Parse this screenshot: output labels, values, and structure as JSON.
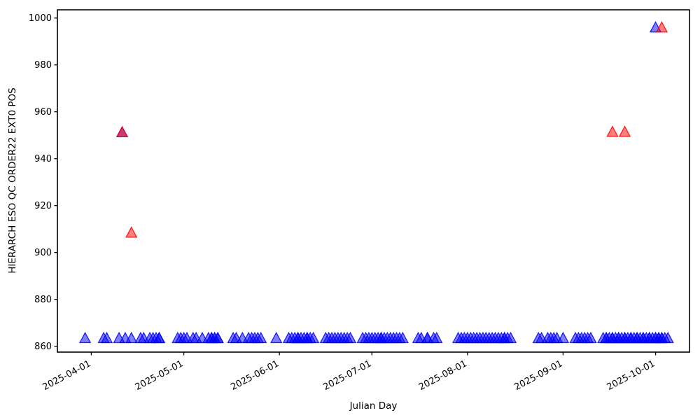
{
  "chart_data": {
    "type": "scatter",
    "title": "",
    "xlabel": "Julian Day",
    "ylabel": "HIERARCH ESO QC ORDER22 EXT0 POS",
    "marker": "triangle-up",
    "marker_alpha": 0.5,
    "grid": false,
    "legend": "none",
    "x_axis": {
      "lim": [
        "2025-03-21",
        "2025-10-12"
      ],
      "ticks": [
        "2025-04-01",
        "2025-05-01",
        "2025-06-01",
        "2025-07-01",
        "2025-08-01",
        "2025-09-01",
        "2025-10-01"
      ],
      "tick_rotation_deg": -28
    },
    "y_axis": {
      "lim": [
        857.5,
        1003.5
      ],
      "ticks": [
        860,
        880,
        900,
        920,
        940,
        960,
        980,
        1000
      ]
    },
    "colors": {
      "series_blue": "#0000ff",
      "series_red": "#ff0000",
      "axis": "#000000",
      "background": "#ffffff"
    },
    "series": [
      {
        "name": "blue",
        "color": "#0000ff",
        "points": [
          [
            "2025-03-30",
            863.5
          ],
          [
            "2025-04-05",
            863.5
          ],
          [
            "2025-04-06",
            863.5
          ],
          [
            "2025-04-10",
            863.5
          ],
          [
            "2025-04-11",
            951.3
          ],
          [
            "2025-04-12",
            863.5
          ],
          [
            "2025-04-14",
            863.5
          ],
          [
            "2025-04-17",
            863.5
          ],
          [
            "2025-04-18",
            863.5
          ],
          [
            "2025-04-20",
            863.5
          ],
          [
            "2025-04-21",
            863.5
          ],
          [
            "2025-04-22",
            863.5
          ],
          [
            "2025-04-23",
            863.5
          ],
          [
            "2025-04-23",
            863.5
          ],
          [
            "2025-04-29",
            863.5
          ],
          [
            "2025-04-30",
            863.5
          ],
          [
            "2025-05-01",
            863.5
          ],
          [
            "2025-05-02",
            863.5
          ],
          [
            "2025-05-04",
            863.5
          ],
          [
            "2025-05-05",
            863.5
          ],
          [
            "2025-05-07",
            863.5
          ],
          [
            "2025-05-09",
            863.5
          ],
          [
            "2025-05-10",
            863.5
          ],
          [
            "2025-05-10",
            863.5
          ],
          [
            "2025-05-11",
            863.5
          ],
          [
            "2025-05-11",
            863.5
          ],
          [
            "2025-05-12",
            863.5
          ],
          [
            "2025-05-12",
            863.5
          ],
          [
            "2025-05-17",
            863.5
          ],
          [
            "2025-05-18",
            863.5
          ],
          [
            "2025-05-20",
            863.5
          ],
          [
            "2025-05-22",
            863.5
          ],
          [
            "2025-05-23",
            863.5
          ],
          [
            "2025-05-24",
            863.5
          ],
          [
            "2025-05-25",
            863.5
          ],
          [
            "2025-05-26",
            863.5
          ],
          [
            "2025-05-31",
            863.5
          ],
          [
            "2025-06-04",
            863.5
          ],
          [
            "2025-06-05",
            863.5
          ],
          [
            "2025-06-06",
            863.5
          ],
          [
            "2025-06-07",
            863.5
          ],
          [
            "2025-06-07",
            863.5
          ],
          [
            "2025-06-08",
            863.5
          ],
          [
            "2025-06-09",
            863.5
          ],
          [
            "2025-06-10",
            863.5
          ],
          [
            "2025-06-10",
            863.5
          ],
          [
            "2025-06-11",
            863.5
          ],
          [
            "2025-06-12",
            863.5
          ],
          [
            "2025-06-16",
            863.5
          ],
          [
            "2025-06-17",
            863.5
          ],
          [
            "2025-06-18",
            863.5
          ],
          [
            "2025-06-19",
            863.5
          ],
          [
            "2025-06-20",
            863.5
          ],
          [
            "2025-06-21",
            863.5
          ],
          [
            "2025-06-22",
            863.5
          ],
          [
            "2025-06-23",
            863.5
          ],
          [
            "2025-06-24",
            863.5
          ],
          [
            "2025-06-28",
            863.5
          ],
          [
            "2025-06-29",
            863.5
          ],
          [
            "2025-06-30",
            863.5
          ],
          [
            "2025-07-01",
            863.5
          ],
          [
            "2025-07-02",
            863.5
          ],
          [
            "2025-07-03",
            863.5
          ],
          [
            "2025-07-04",
            863.5
          ],
          [
            "2025-07-04",
            863.5
          ],
          [
            "2025-07-05",
            863.5
          ],
          [
            "2025-07-06",
            863.5
          ],
          [
            "2025-07-07",
            863.5
          ],
          [
            "2025-07-08",
            863.5
          ],
          [
            "2025-07-09",
            863.5
          ],
          [
            "2025-07-10",
            863.5
          ],
          [
            "2025-07-11",
            863.5
          ],
          [
            "2025-07-16",
            863.5
          ],
          [
            "2025-07-17",
            863.5
          ],
          [
            "2025-07-19",
            863.5
          ],
          [
            "2025-07-19",
            863.5
          ],
          [
            "2025-07-21",
            863.5
          ],
          [
            "2025-07-22",
            863.5
          ],
          [
            "2025-07-29",
            863.5
          ],
          [
            "2025-07-30",
            863.5
          ],
          [
            "2025-07-31",
            863.5
          ],
          [
            "2025-08-01",
            863.5
          ],
          [
            "2025-08-02",
            863.5
          ],
          [
            "2025-08-03",
            863.5
          ],
          [
            "2025-08-04",
            863.5
          ],
          [
            "2025-08-05",
            863.5
          ],
          [
            "2025-08-06",
            863.5
          ],
          [
            "2025-08-07",
            863.5
          ],
          [
            "2025-08-08",
            863.5
          ],
          [
            "2025-08-09",
            863.5
          ],
          [
            "2025-08-10",
            863.5
          ],
          [
            "2025-08-11",
            863.5
          ],
          [
            "2025-08-12",
            863.5
          ],
          [
            "2025-08-13",
            863.5
          ],
          [
            "2025-08-13",
            863.5
          ],
          [
            "2025-08-14",
            863.5
          ],
          [
            "2025-08-15",
            863.5
          ],
          [
            "2025-08-24",
            863.5
          ],
          [
            "2025-08-25",
            863.5
          ],
          [
            "2025-08-27",
            863.5
          ],
          [
            "2025-08-28",
            863.5
          ],
          [
            "2025-08-29",
            863.5
          ],
          [
            "2025-08-30",
            863.5
          ],
          [
            "2025-09-01",
            863.5
          ],
          [
            "2025-09-05",
            863.5
          ],
          [
            "2025-09-06",
            863.5
          ],
          [
            "2025-09-07",
            863.5
          ],
          [
            "2025-09-08",
            863.5
          ],
          [
            "2025-09-09",
            863.5
          ],
          [
            "2025-09-10",
            863.5
          ],
          [
            "2025-09-14",
            863.5
          ],
          [
            "2025-09-15",
            863.5
          ],
          [
            "2025-09-15",
            863.5
          ],
          [
            "2025-09-16",
            863.5
          ],
          [
            "2025-09-17",
            863.5
          ],
          [
            "2025-09-17",
            863.5
          ],
          [
            "2025-09-18",
            863.5
          ],
          [
            "2025-09-19",
            863.5
          ],
          [
            "2025-09-19",
            863.5
          ],
          [
            "2025-09-20",
            863.5
          ],
          [
            "2025-09-21",
            863.5
          ],
          [
            "2025-09-21",
            863.5
          ],
          [
            "2025-09-22",
            863.5
          ],
          [
            "2025-09-23",
            863.5
          ],
          [
            "2025-09-23",
            863.5
          ],
          [
            "2025-09-24",
            863.5
          ],
          [
            "2025-09-25",
            863.5
          ],
          [
            "2025-09-25",
            863.5
          ],
          [
            "2025-09-26",
            863.5
          ],
          [
            "2025-09-27",
            863.5
          ],
          [
            "2025-09-27",
            863.5
          ],
          [
            "2025-09-28",
            863.5
          ],
          [
            "2025-09-29",
            863.5
          ],
          [
            "2025-09-29",
            863.5
          ],
          [
            "2025-09-30",
            863.5
          ],
          [
            "2025-10-01",
            863.5
          ],
          [
            "2025-10-01",
            863.5
          ],
          [
            "2025-10-02",
            863.5
          ],
          [
            "2025-10-02",
            863.5
          ],
          [
            "2025-10-03",
            863.5
          ],
          [
            "2025-10-03",
            863.5
          ],
          [
            "2025-10-04",
            863.5
          ],
          [
            "2025-10-05",
            863.5
          ],
          [
            "2025-10-01",
            996.0
          ]
        ]
      },
      {
        "name": "red",
        "color": "#ff0000",
        "points": [
          [
            "2025-04-11",
            951.3
          ],
          [
            "2025-04-14",
            908.5
          ],
          [
            "2025-09-17",
            951.5
          ],
          [
            "2025-09-21",
            951.5
          ],
          [
            "2025-10-03",
            996.0
          ]
        ]
      }
    ]
  }
}
